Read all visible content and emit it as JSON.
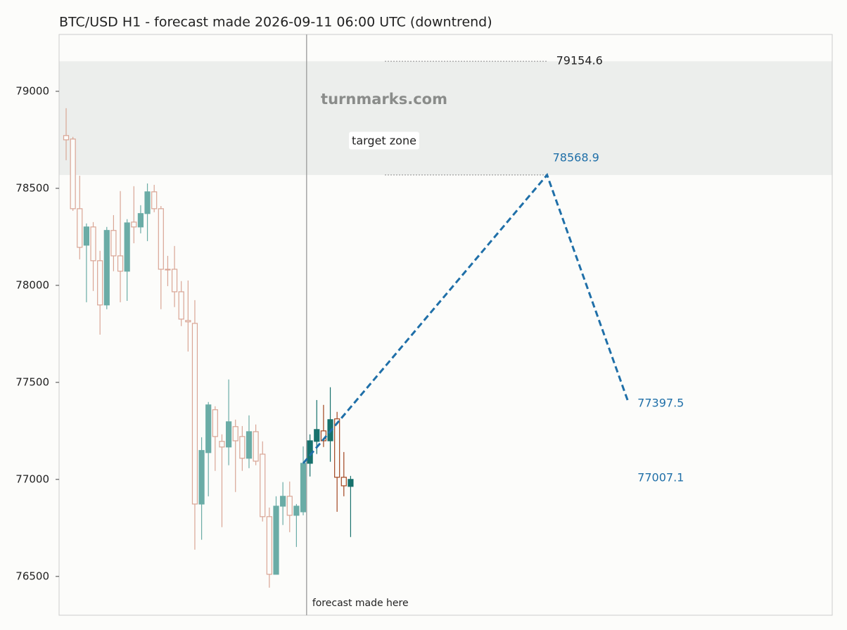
{
  "chart_data": {
    "type": "candlestick",
    "title": "BTC/USD H1 - forecast made 2026-09-11 06:00 UTC (downtrend)",
    "xlim": [
      -1.04,
      113.1
    ],
    "ylim": [
      76300,
      79293
    ],
    "yticks": [
      76500,
      77000,
      77500,
      78000,
      78500,
      79000
    ],
    "candles": {
      "x": [
        0,
        1,
        2,
        3,
        4,
        5,
        6,
        7,
        8,
        9,
        10,
        11,
        12,
        13,
        14,
        15,
        16,
        17,
        18,
        19,
        20,
        21,
        22,
        23,
        24,
        25,
        26,
        27,
        28,
        29,
        30,
        31,
        32,
        33,
        34,
        35,
        36,
        37,
        38,
        39,
        40,
        41,
        42
      ],
      "open": [
        78772,
        78754,
        78395,
        78207,
        78301,
        78127,
        77899,
        78283,
        78152,
        78073,
        78326,
        78301,
        78370,
        78482,
        78395,
        78083,
        78083,
        77967,
        77819,
        77804,
        76873,
        77138,
        77359,
        77196,
        77167,
        77272,
        77221,
        77109,
        77246,
        77130,
        76808,
        76511,
        76862,
        76913,
        76815,
        76833,
        77083,
        77196,
        77250,
        77199,
        77312,
        77011,
        76964
      ],
      "high": [
        78913,
        78765,
        78565,
        78319,
        78326,
        78178,
        78301,
        78362,
        78486,
        78341,
        78511,
        78413,
        78525,
        78518,
        78409,
        78152,
        78203,
        78022,
        78025,
        77924,
        77217,
        77399,
        77377,
        77232,
        77515,
        77308,
        77275,
        77330,
        77283,
        77196,
        76855,
        76913,
        76986,
        76989,
        76873,
        77170,
        77232,
        77409,
        77384,
        77475,
        77348,
        77141,
        77018
      ],
      "low": [
        78645,
        78384,
        78134,
        77913,
        77971,
        77746,
        77877,
        78073,
        77913,
        77920,
        78217,
        78268,
        78228,
        78377,
        77877,
        77996,
        77888,
        77790,
        77659,
        76638,
        76689,
        76913,
        77044,
        76754,
        77073,
        76935,
        77044,
        77058,
        77073,
        76783,
        76442,
        76511,
        76765,
        76728,
        76652,
        76815,
        77015,
        77131,
        77167,
        77091,
        76833,
        76913,
        76703
      ],
      "close": [
        78750,
        78395,
        78196,
        78301,
        78127,
        77899,
        78283,
        78152,
        78073,
        78322,
        78301,
        78370,
        78482,
        78395,
        78083,
        78080,
        77967,
        77826,
        77812,
        76873,
        77149,
        77384,
        77221,
        77167,
        77297,
        77199,
        77109,
        77246,
        77094,
        76808,
        76511,
        76862,
        76913,
        76815,
        76862,
        77083,
        77199,
        77257,
        77199,
        77308,
        77011,
        76967,
        77000
      ],
      "history_colors": {
        "up": "#6aaca6",
        "down": "#d9a595"
      },
      "recent_colors": {
        "up": "#17716c",
        "down": "#a2451f"
      }
    },
    "forecast_made": {
      "x": 35.5,
      "label": "forecast made here",
      "color": "#999999"
    },
    "forecast": {
      "x": [
        35,
        71,
        83
      ],
      "values": [
        77083,
        78568.9,
        77397.5
      ],
      "color": "#1f6fa8"
    },
    "target_zone": {
      "label": "target zone",
      "range": [
        78568.9,
        79154.6
      ],
      "color": "#eceeec"
    },
    "current_price": 77007.1,
    "watermark": "turnmarks.com"
  }
}
